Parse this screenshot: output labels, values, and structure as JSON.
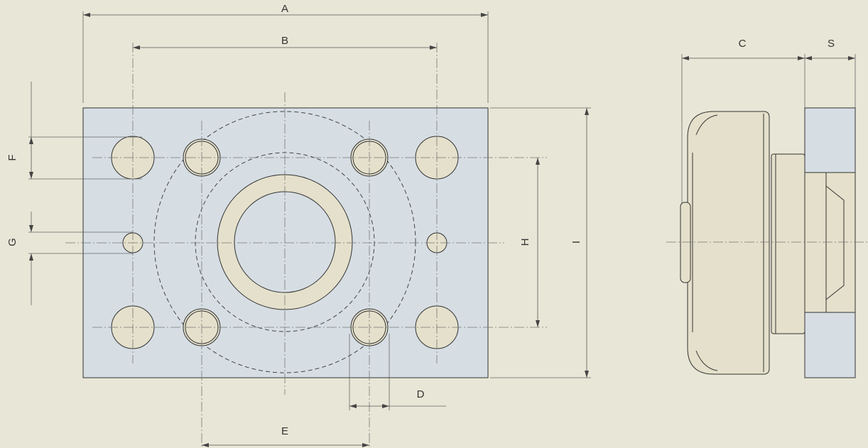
{
  "dimension_labels": {
    "A": "A",
    "B": "B",
    "C": "C",
    "S": "S",
    "D": "D",
    "E": "E",
    "F": "F",
    "G": "G",
    "H": "H",
    "I": "I"
  }
}
